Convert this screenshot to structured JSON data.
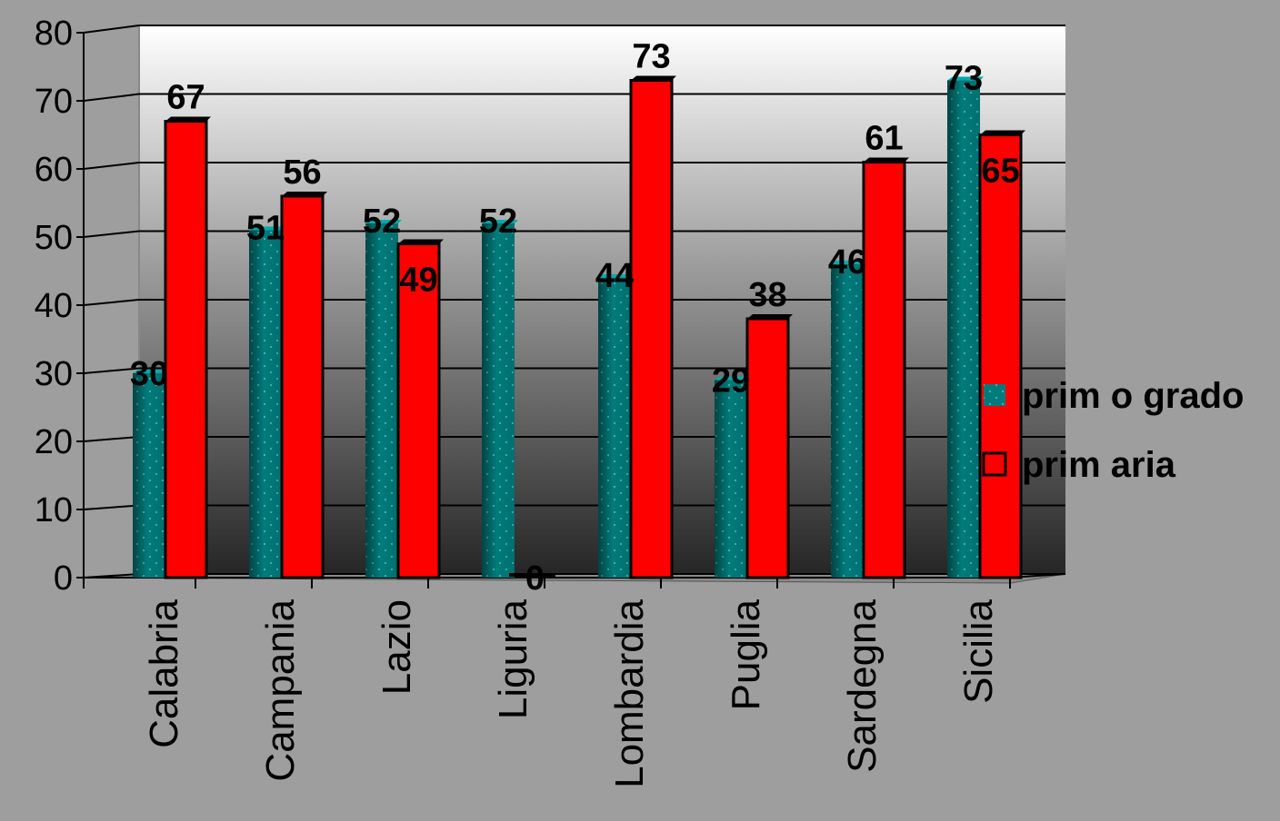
{
  "chart_data": {
    "type": "bar",
    "title": "",
    "xlabel": "",
    "ylabel": "",
    "ylim": [
      0,
      80
    ],
    "yticks": [
      0,
      10,
      20,
      30,
      40,
      50,
      60,
      70,
      80
    ],
    "categories": [
      "Calabria",
      "Campania",
      "Lazio",
      "Liguria",
      "Lombardia",
      "Puglia",
      "Sardegna",
      "Sicilia"
    ],
    "series": [
      {
        "name": "prim o grado",
        "values": [
          30,
          51,
          52,
          52,
          44,
          29,
          46,
          73
        ],
        "color": "#007b7b"
      },
      {
        "name": "prim aria",
        "values": [
          67,
          56,
          49,
          0,
          73,
          38,
          61,
          65
        ],
        "color": "#ff0000"
      }
    ],
    "grid": true,
    "legend": "right",
    "style": "3d"
  }
}
